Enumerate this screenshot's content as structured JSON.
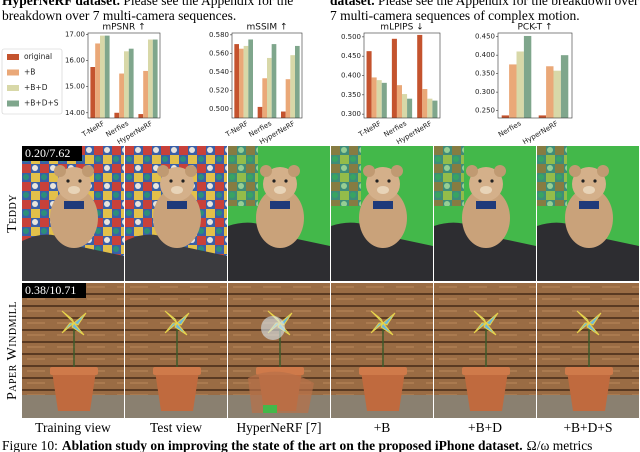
{
  "header": {
    "left_bold": "HyperNeRF dataset.",
    "left_text": "Please see the Appendix for the breakdown over 7 multi-camera sequences.",
    "right_bold": "dataset.",
    "right_text": "Please see the Appendix for the breakdown over 7 multi-camera sequences of complex motion."
  },
  "chart_data": [
    {
      "type": "bar",
      "title": "mPSNR ↑",
      "categories": [
        "T-NeRF",
        "Nerfies",
        "HyperNeRF"
      ],
      "ylim": [
        13.8,
        17.05
      ],
      "yticks": [
        {
          "value": 14,
          "label": "14.00"
        },
        {
          "value": 15,
          "label": "15.00"
        },
        {
          "value": 16,
          "label": "16.00"
        },
        {
          "value": 17,
          "label": "17.00"
        }
      ],
      "series": [
        {
          "name": "original",
          "color": "#c4532e",
          "values": [
            15.75,
            14.0,
            13.95
          ]
        },
        {
          "name": "+B",
          "color": "#eaa878",
          "values": [
            16.65,
            15.5,
            15.6
          ]
        },
        {
          "name": "+B+D",
          "color": "#d8d8a8",
          "values": [
            16.95,
            16.35,
            16.8
          ]
        },
        {
          "name": "+B+D+S",
          "color": "#7fa68c",
          "values": [
            16.95,
            16.45,
            16.8
          ]
        }
      ]
    },
    {
      "type": "bar",
      "title": "mSSIM ↑",
      "categories": [
        "T-NeRF",
        "Nerfies",
        "HyperNeRF"
      ],
      "ylim": [
        0.49,
        0.582
      ],
      "yticks": [
        {
          "value": 0.5,
          "label": "0.500"
        },
        {
          "value": 0.52,
          "label": "0.520"
        },
        {
          "value": 0.54,
          "label": "0.540"
        },
        {
          "value": 0.56,
          "label": "0.560"
        },
        {
          "value": 0.58,
          "label": "0.580"
        }
      ],
      "series": [
        {
          "values": [
            0.57,
            0.502,
            0.497
          ]
        },
        {
          "values": [
            0.565,
            0.533,
            0.532
          ]
        },
        {
          "values": [
            0.568,
            0.555,
            0.558
          ]
        },
        {
          "values": [
            0.575,
            0.57,
            0.568
          ]
        }
      ]
    },
    {
      "type": "bar",
      "title": "mLPIPS ↓",
      "categories": [
        "T-NeRF",
        "Nerfies",
        "HyperNeRF"
      ],
      "ylim": [
        0.29,
        0.51
      ],
      "yticks": [
        {
          "value": 0.3,
          "label": "0.300"
        },
        {
          "value": 0.35,
          "label": "0.350"
        },
        {
          "value": 0.4,
          "label": "0.400"
        },
        {
          "value": 0.45,
          "label": "0.450"
        },
        {
          "value": 0.5,
          "label": "0.500"
        }
      ],
      "series": [
        {
          "values": [
            0.463,
            0.495,
            0.505
          ]
        },
        {
          "values": [
            0.395,
            0.375,
            0.365
          ]
        },
        {
          "values": [
            0.388,
            0.352,
            0.34
          ]
        },
        {
          "values": [
            0.381,
            0.34,
            0.335
          ]
        }
      ]
    },
    {
      "type": "bar",
      "title": "PCK-T ↑",
      "categories": [
        "Nerfies",
        "HyperNeRF"
      ],
      "ylim": [
        0.23,
        0.46
      ],
      "yticks": [
        {
          "value": 0.25,
          "label": "0.250"
        },
        {
          "value": 0.3,
          "label": "0.300"
        },
        {
          "value": 0.35,
          "label": "0.350"
        },
        {
          "value": 0.4,
          "label": "0.400"
        },
        {
          "value": 0.45,
          "label": "0.450"
        }
      ],
      "series": [
        {
          "values": [
            0.237,
            0.237
          ]
        },
        {
          "values": [
            0.375,
            0.37
          ]
        },
        {
          "values": [
            0.41,
            0.358
          ]
        },
        {
          "values": [
            0.452,
            0.4
          ]
        }
      ]
    }
  ],
  "grid": {
    "rows": [
      {
        "label": "Teddy",
        "metric": "0.20/7.62"
      },
      {
        "label": "Paper Windmill",
        "metric": "0.38/10.71"
      }
    ],
    "columns": [
      "Training view",
      "Test view",
      "HyperNeRF [7]",
      "+B",
      "+B+D",
      "+B+D+S"
    ]
  },
  "caption": {
    "number": "Figure 10:",
    "bold": "Ablation study on improving the state of the art on the proposed iPhone dataset.",
    "tail": "Ω/ω metrics"
  }
}
